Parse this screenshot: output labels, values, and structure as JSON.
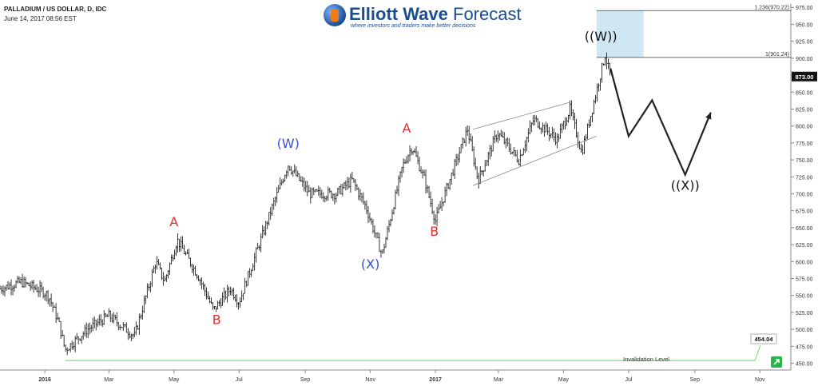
{
  "header": {
    "symbol_line": "PALLADIUM / US DOLLAR, D, IDC",
    "date_line": "June 14, 2017 08:56 EST"
  },
  "logo": {
    "brand_a": "Elliott Wave",
    "brand_b": "Forecast",
    "tagline": "where investors and traders make better decisions"
  },
  "colors": {
    "bars": "#222222",
    "wave_red": "#e03030",
    "wave_blue": "#3a4fd0",
    "wave_black": "#111111",
    "invalidation": "#5fd35f",
    "target_box": "#cfe6f3"
  },
  "chart_data": {
    "type": "ohlc-bar",
    "ylim": [
      440,
      980
    ],
    "y_ticks": [
      450,
      475,
      500,
      525,
      550,
      575,
      600,
      625,
      650,
      675,
      700,
      725,
      750,
      775,
      800,
      825,
      850,
      875,
      900,
      925,
      950,
      975
    ],
    "x_ticks": [
      "2016",
      "Mar",
      "May",
      "Jul",
      "Sep",
      "Nov",
      "2017",
      "Mar",
      "May",
      "Jul",
      "Sep",
      "Nov"
    ],
    "x_tick_dates": [
      "2016-01-01",
      "2016-03-01",
      "2016-05-01",
      "2016-07-01",
      "2016-09-01",
      "2016-11-01",
      "2017-01-01",
      "2017-03-01",
      "2017-05-01",
      "2017-07-01",
      "2017-09-01",
      "2017-11-01"
    ],
    "price_path": [
      [
        "2015-11-20",
        560
      ],
      [
        "2015-12-10",
        570
      ],
      [
        "2015-12-31",
        555
      ],
      [
        "2016-01-05",
        548
      ],
      [
        "2016-01-14",
        510
      ],
      [
        "2016-01-20",
        470
      ],
      [
        "2016-02-10",
        500
      ],
      [
        "2016-03-01",
        520
      ],
      [
        "2016-03-25",
        490
      ],
      [
        "2016-04-14",
        600
      ],
      [
        "2016-04-22",
        570
      ],
      [
        "2016-05-04",
        632
      ],
      [
        "2016-05-25",
        575
      ],
      [
        "2016-06-07",
        528
      ],
      [
        "2016-06-23",
        560
      ],
      [
        "2016-07-01",
        540
      ],
      [
        "2016-08-01",
        680
      ],
      [
        "2016-08-16",
        743
      ],
      [
        "2016-09-05",
        700
      ],
      [
        "2016-09-30",
        700
      ],
      [
        "2016-10-15",
        720
      ],
      [
        "2016-10-28",
        680
      ],
      [
        "2016-11-12",
        610
      ],
      [
        "2016-12-01",
        740
      ],
      [
        "2016-12-10",
        770
      ],
      [
        "2016-12-22",
        720
      ],
      [
        "2017-01-01",
        660
      ],
      [
        "2017-01-12",
        710
      ],
      [
        "2017-01-31",
        795
      ],
      [
        "2017-02-10",
        720
      ],
      [
        "2017-02-28",
        790
      ],
      [
        "2017-03-20",
        750
      ],
      [
        "2017-04-03",
        810
      ],
      [
        "2017-04-25",
        780
      ],
      [
        "2017-05-07",
        825
      ],
      [
        "2017-05-18",
        760
      ],
      [
        "2017-06-01",
        852
      ],
      [
        "2017-06-09",
        905
      ],
      [
        "2017-06-14",
        873
      ]
    ],
    "current_price": 873.0,
    "current_price_label": "873.00",
    "fib_levels": [
      {
        "label": "1.236(970.22)",
        "value": 970.22
      },
      {
        "label": "1(901.24)",
        "value": 901.24
      }
    ],
    "target_box": {
      "x1": "2017-06-01",
      "x2": "2017-07-15",
      "y1": 901.24,
      "y2": 970.22
    },
    "invalidation": {
      "label": "Invalidation Level",
      "value": 454.04,
      "value_label": "454.04",
      "x_start": "2016-01-20"
    },
    "wedge": {
      "upper": [
        [
          "2017-02-05",
          795
        ],
        [
          "2017-05-07",
          835
        ]
      ],
      "lower": [
        [
          "2017-02-05",
          712
        ],
        [
          "2017-06-01",
          785
        ]
      ]
    },
    "projection": [
      [
        "2017-06-14",
        885
      ],
      [
        "2017-07-01",
        785
      ],
      [
        "2017-07-23",
        838
      ],
      [
        "2017-08-23",
        728
      ],
      [
        "2017-09-16",
        820
      ]
    ],
    "wave_labels": [
      {
        "text": "A",
        "x": "2016-05-01",
        "y": 652,
        "color": "red"
      },
      {
        "text": "B",
        "x": "2016-06-10",
        "y": 508,
        "color": "red"
      },
      {
        "text": "(W)",
        "x": "2016-08-16",
        "y": 768,
        "color": "blue"
      },
      {
        "text": "(X)",
        "x": "2016-11-01",
        "y": 590,
        "color": "blue"
      },
      {
        "text": "A",
        "x": "2016-12-05",
        "y": 790,
        "color": "red"
      },
      {
        "text": "B",
        "x": "2016-12-31",
        "y": 638,
        "color": "red"
      },
      {
        "text": "((W))",
        "x": "2017-06-05",
        "y": 926,
        "color": "black"
      },
      {
        "text": "((X))",
        "x": "2017-08-23",
        "y": 706,
        "color": "black"
      }
    ]
  }
}
